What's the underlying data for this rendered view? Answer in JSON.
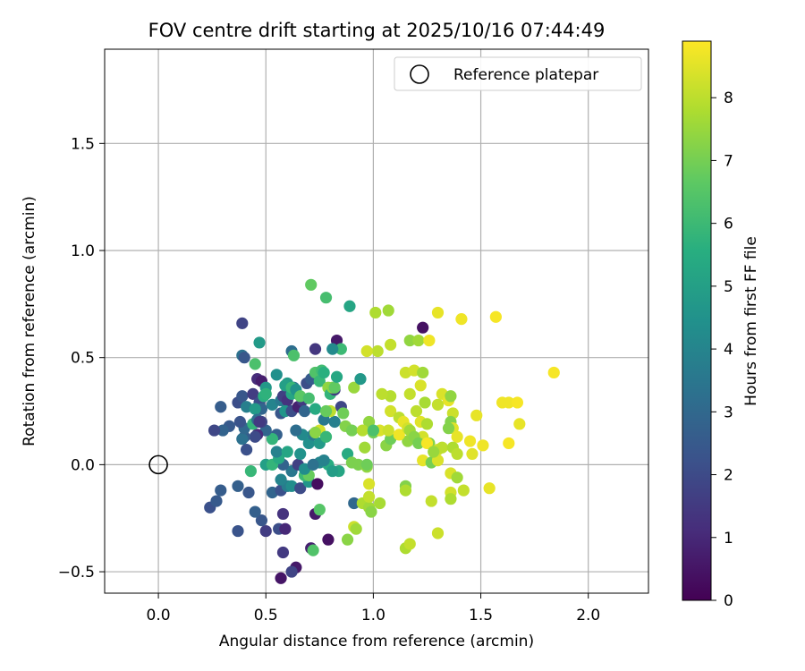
{
  "chart_data": {
    "type": "scatter",
    "title": "FOV centre drift starting at 2025/10/16 07:44:49",
    "xlabel": "Angular distance from reference (arcmin)",
    "ylabel": "Rotation from reference (arcmin)",
    "xlim": [
      -0.25,
      2.28
    ],
    "ylim": [
      -0.6,
      1.94
    ],
    "xticks": [
      0.0,
      0.5,
      1.0,
      1.5,
      2.0
    ],
    "xtick_labels": [
      "0.0",
      "0.5",
      "1.0",
      "1.5",
      "2.0"
    ],
    "yticks": [
      -0.5,
      0.0,
      0.5,
      1.0,
      1.5
    ],
    "ytick_labels": [
      "−0.5",
      "0.0",
      "0.5",
      "1.0",
      "1.5"
    ],
    "grid": true,
    "legend": {
      "placement": "top-right",
      "label": "Reference platepar"
    },
    "reference_point": {
      "x": 0.0,
      "y": 0.0
    },
    "colorbar": {
      "label": "Hours from first FF file",
      "min": 0,
      "max": 8.9,
      "ticks": [
        0,
        1,
        2,
        3,
        4,
        5,
        6,
        7,
        8
      ],
      "tick_labels": [
        "0",
        "1",
        "2",
        "3",
        "4",
        "5",
        "6",
        "7",
        "8"
      ],
      "colormap": "viridis"
    },
    "points": [
      {
        "x": 0.57,
        "y": -0.53,
        "t": 0.5
      },
      {
        "x": 0.64,
        "y": -0.48,
        "t": 0.6
      },
      {
        "x": 0.62,
        "y": -0.5,
        "t": 1.8
      },
      {
        "x": 0.58,
        "y": -0.41,
        "t": 1.5
      },
      {
        "x": 0.71,
        "y": -0.39,
        "t": 0.8
      },
      {
        "x": 0.79,
        "y": -0.35,
        "t": 0.4
      },
      {
        "x": 0.56,
        "y": -0.3,
        "t": 2.1
      },
      {
        "x": 0.59,
        "y": -0.3,
        "t": 1.0
      },
      {
        "x": 0.5,
        "y": -0.31,
        "t": 1.6
      },
      {
        "x": 0.48,
        "y": -0.26,
        "t": 2.4
      },
      {
        "x": 0.45,
        "y": -0.22,
        "t": 2.7
      },
      {
        "x": 0.58,
        "y": -0.23,
        "t": 1.3
      },
      {
        "x": 0.37,
        "y": -0.31,
        "t": 2.3
      },
      {
        "x": 0.24,
        "y": -0.2,
        "t": 2.2
      },
      {
        "x": 0.27,
        "y": -0.17,
        "t": 2.5
      },
      {
        "x": 0.29,
        "y": -0.12,
        "t": 2.6
      },
      {
        "x": 0.37,
        "y": -0.1,
        "t": 2.7
      },
      {
        "x": 0.42,
        "y": -0.13,
        "t": 2.4
      },
      {
        "x": 0.53,
        "y": -0.13,
        "t": 2.9
      },
      {
        "x": 0.57,
        "y": -0.12,
        "t": 2.2
      },
      {
        "x": 0.6,
        "y": -0.1,
        "t": 3.7
      },
      {
        "x": 0.62,
        "y": -0.1,
        "t": 4.3
      },
      {
        "x": 0.66,
        "y": -0.11,
        "t": 2.0
      },
      {
        "x": 0.7,
        "y": -0.08,
        "t": 4.6
      },
      {
        "x": 0.73,
        "y": -0.23,
        "t": 0.6
      },
      {
        "x": 0.75,
        "y": -0.21,
        "t": 6.5
      },
      {
        "x": 0.74,
        "y": -0.09,
        "t": 0.3
      },
      {
        "x": 0.72,
        "y": -0.4,
        "t": 6.4
      },
      {
        "x": 0.57,
        "y": -0.07,
        "t": 4.0
      },
      {
        "x": 0.62,
        "y": -0.03,
        "t": 3.5
      },
      {
        "x": 0.58,
        "y": 0.0,
        "t": 2.8
      },
      {
        "x": 0.65,
        "y": 0.0,
        "t": 1.7
      },
      {
        "x": 0.68,
        "y": -0.05,
        "t": 6.0
      },
      {
        "x": 0.7,
        "y": -0.05,
        "t": 6.8
      },
      {
        "x": 0.75,
        "y": 0.01,
        "t": 4.1
      },
      {
        "x": 0.79,
        "y": 0.0,
        "t": 5.5
      },
      {
        "x": 0.84,
        "y": -0.03,
        "t": 5.2
      },
      {
        "x": 0.5,
        "y": 0.0,
        "t": 5.0
      },
      {
        "x": 0.53,
        "y": 0.0,
        "t": 5.8
      },
      {
        "x": 0.56,
        "y": 0.03,
        "t": 5.4
      },
      {
        "x": 0.43,
        "y": -0.03,
        "t": 5.9
      },
      {
        "x": 0.55,
        "y": 0.06,
        "t": 3.9
      },
      {
        "x": 0.6,
        "y": 0.06,
        "t": 5.2
      },
      {
        "x": 0.66,
        "y": 0.05,
        "t": 4.5
      },
      {
        "x": 0.7,
        "y": 0.1,
        "t": 4.4
      },
      {
        "x": 0.72,
        "y": 0.14,
        "t": 3.6
      },
      {
        "x": 0.75,
        "y": 0.1,
        "t": 4.8
      },
      {
        "x": 0.67,
        "y": 0.14,
        "t": 4.2
      },
      {
        "x": 0.64,
        "y": 0.16,
        "t": 3.2
      },
      {
        "x": 0.55,
        "y": 0.14,
        "t": 2.7
      },
      {
        "x": 0.53,
        "y": 0.12,
        "t": 5.8
      },
      {
        "x": 0.5,
        "y": 0.16,
        "t": 2.9
      },
      {
        "x": 0.46,
        "y": 0.14,
        "t": 1.1
      },
      {
        "x": 0.45,
        "y": 0.13,
        "t": 2.0
      },
      {
        "x": 0.4,
        "y": 0.13,
        "t": 2.6
      },
      {
        "x": 0.39,
        "y": 0.12,
        "t": 3.3
      },
      {
        "x": 0.41,
        "y": 0.07,
        "t": 2.2
      },
      {
        "x": 0.4,
        "y": 0.17,
        "t": 3.0
      },
      {
        "x": 0.44,
        "y": 0.19,
        "t": 5.8
      },
      {
        "x": 0.48,
        "y": 0.2,
        "t": 1.9
      },
      {
        "x": 0.38,
        "y": 0.2,
        "t": 2.3
      },
      {
        "x": 0.33,
        "y": 0.18,
        "t": 2.5
      },
      {
        "x": 0.3,
        "y": 0.16,
        "t": 2.8
      },
      {
        "x": 0.26,
        "y": 0.16,
        "t": 1.9
      },
      {
        "x": 0.29,
        "y": 0.27,
        "t": 2.6
      },
      {
        "x": 0.37,
        "y": 0.29,
        "t": 2.1
      },
      {
        "x": 0.39,
        "y": 0.32,
        "t": 2.4
      },
      {
        "x": 0.41,
        "y": 0.27,
        "t": 3.8
      },
      {
        "x": 0.44,
        "y": 0.33,
        "t": 1.6
      },
      {
        "x": 0.47,
        "y": 0.29,
        "t": 2.1
      },
      {
        "x": 0.49,
        "y": 0.32,
        "t": 5.6
      },
      {
        "x": 0.48,
        "y": 0.26,
        "t": 2.9
      },
      {
        "x": 0.53,
        "y": 0.28,
        "t": 4.0
      },
      {
        "x": 0.57,
        "y": 0.3,
        "t": 3.6
      },
      {
        "x": 0.58,
        "y": 0.32,
        "t": 1.7
      },
      {
        "x": 0.6,
        "y": 0.3,
        "t": 1.3
      },
      {
        "x": 0.62,
        "y": 0.33,
        "t": 5.2
      },
      {
        "x": 0.63,
        "y": 0.36,
        "t": 3.4
      },
      {
        "x": 0.6,
        "y": 0.38,
        "t": 4.8
      },
      {
        "x": 0.57,
        "y": 0.24,
        "t": 2.4
      },
      {
        "x": 0.59,
        "y": 0.25,
        "t": 4.6
      },
      {
        "x": 0.62,
        "y": 0.25,
        "t": 2.1
      },
      {
        "x": 0.65,
        "y": 0.27,
        "t": 0.8
      },
      {
        "x": 0.67,
        "y": 0.3,
        "t": 1.5
      },
      {
        "x": 0.68,
        "y": 0.25,
        "t": 2.9
      },
      {
        "x": 0.69,
        "y": 0.38,
        "t": 2.1
      },
      {
        "x": 0.71,
        "y": 0.4,
        "t": 2.5
      },
      {
        "x": 0.73,
        "y": 0.43,
        "t": 6.4
      },
      {
        "x": 0.76,
        "y": 0.44,
        "t": 6.1
      },
      {
        "x": 0.75,
        "y": 0.39,
        "t": 5.9
      },
      {
        "x": 0.79,
        "y": 0.36,
        "t": 7.4
      },
      {
        "x": 0.8,
        "y": 0.33,
        "t": 5.8
      },
      {
        "x": 0.82,
        "y": 0.35,
        "t": 1.6
      },
      {
        "x": 0.85,
        "y": 0.27,
        "t": 1.9
      },
      {
        "x": 0.82,
        "y": 0.2,
        "t": 3.8
      },
      {
        "x": 0.86,
        "y": 0.24,
        "t": 6.9
      },
      {
        "x": 0.8,
        "y": 0.25,
        "t": 8.0
      },
      {
        "x": 0.77,
        "y": 0.21,
        "t": 3.6
      },
      {
        "x": 0.75,
        "y": 0.16,
        "t": 8.3
      },
      {
        "x": 0.73,
        "y": 0.15,
        "t": 7.3
      },
      {
        "x": 0.78,
        "y": 0.13,
        "t": 5.9
      },
      {
        "x": 0.87,
        "y": 0.18,
        "t": 7.2
      },
      {
        "x": 0.9,
        "y": 0.16,
        "t": 7.0
      },
      {
        "x": 0.91,
        "y": 0.36,
        "t": 7.5
      },
      {
        "x": 0.94,
        "y": 0.4,
        "t": 4.7
      },
      {
        "x": 0.88,
        "y": 0.05,
        "t": 5.4
      },
      {
        "x": 0.93,
        "y": 0.0,
        "t": 7.1
      },
      {
        "x": 0.97,
        "y": -0.01,
        "t": 7.4
      },
      {
        "x": 0.91,
        "y": -0.18,
        "t": 3.0
      },
      {
        "x": 0.95,
        "y": -0.18,
        "t": 7.8
      },
      {
        "x": 0.98,
        "y": -0.2,
        "t": 7.6
      },
      {
        "x": 0.98,
        "y": -0.15,
        "t": 8.1
      },
      {
        "x": 0.98,
        "y": -0.09,
        "t": 8.4
      },
      {
        "x": 1.03,
        "y": -0.18,
        "t": 7.7
      },
      {
        "x": 0.99,
        "y": -0.22,
        "t": 7.3
      },
      {
        "x": 0.91,
        "y": -0.29,
        "t": 8.2
      },
      {
        "x": 0.92,
        "y": -0.3,
        "t": 7.6
      },
      {
        "x": 0.88,
        "y": -0.35,
        "t": 7.3
      },
      {
        "x": 0.96,
        "y": 0.08,
        "t": 7.6
      },
      {
        "x": 0.98,
        "y": 0.2,
        "t": 7.4
      },
      {
        "x": 1.0,
        "y": 0.15,
        "t": 7.0
      },
      {
        "x": 1.03,
        "y": 0.16,
        "t": 8.4
      },
      {
        "x": 1.06,
        "y": 0.09,
        "t": 7.3
      },
      {
        "x": 1.08,
        "y": 0.12,
        "t": 6.9
      },
      {
        "x": 1.07,
        "y": 0.16,
        "t": 8.2
      },
      {
        "x": 1.08,
        "y": 0.25,
        "t": 8.3
      },
      {
        "x": 1.08,
        "y": 0.32,
        "t": 7.9
      },
      {
        "x": 1.04,
        "y": 0.33,
        "t": 8.0
      },
      {
        "x": 1.12,
        "y": 0.22,
        "t": 8.0
      },
      {
        "x": 1.14,
        "y": 0.2,
        "t": 8.6
      },
      {
        "x": 1.16,
        "y": 0.11,
        "t": 7.4
      },
      {
        "x": 1.15,
        "y": -0.1,
        "t": 7.2
      },
      {
        "x": 1.15,
        "y": -0.12,
        "t": 7.8
      },
      {
        "x": 1.15,
        "y": -0.39,
        "t": 7.8
      },
      {
        "x": 1.17,
        "y": -0.37,
        "t": 8.1
      },
      {
        "x": 1.17,
        "y": 0.33,
        "t": 8.1
      },
      {
        "x": 1.15,
        "y": 0.43,
        "t": 8.2
      },
      {
        "x": 1.19,
        "y": 0.44,
        "t": 8.3
      },
      {
        "x": 1.17,
        "y": 0.58,
        "t": 7.4
      },
      {
        "x": 1.21,
        "y": 0.58,
        "t": 7.6
      },
      {
        "x": 1.23,
        "y": 0.64,
        "t": 0.4
      },
      {
        "x": 1.26,
        "y": 0.58,
        "t": 8.7
      },
      {
        "x": 1.23,
        "y": 0.43,
        "t": 7.6
      },
      {
        "x": 1.22,
        "y": 0.37,
        "t": 8.4
      },
      {
        "x": 1.24,
        "y": 0.29,
        "t": 7.7
      },
      {
        "x": 1.2,
        "y": 0.25,
        "t": 8.0
      },
      {
        "x": 1.22,
        "y": 0.2,
        "t": 8.5
      },
      {
        "x": 1.25,
        "y": 0.19,
        "t": 7.8
      },
      {
        "x": 1.23,
        "y": 0.13,
        "t": 8.3
      },
      {
        "x": 1.26,
        "y": 0.1,
        "t": 7.2
      },
      {
        "x": 1.3,
        "y": 0.07,
        "t": 8.2
      },
      {
        "x": 1.32,
        "y": 0.08,
        "t": 8.0
      },
      {
        "x": 1.23,
        "y": 0.02,
        "t": 8.6
      },
      {
        "x": 1.27,
        "y": 0.01,
        "t": 7.0
      },
      {
        "x": 1.3,
        "y": 0.02,
        "t": 8.4
      },
      {
        "x": 1.27,
        "y": -0.17,
        "t": 8.1
      },
      {
        "x": 1.3,
        "y": -0.32,
        "t": 8.2
      },
      {
        "x": 1.32,
        "y": 0.33,
        "t": 8.4
      },
      {
        "x": 1.35,
        "y": 0.3,
        "t": 8.6
      },
      {
        "x": 1.36,
        "y": 0.32,
        "t": 7.4
      },
      {
        "x": 1.37,
        "y": 0.24,
        "t": 8.2
      },
      {
        "x": 1.36,
        "y": 0.2,
        "t": 7.2
      },
      {
        "x": 1.37,
        "y": 0.17,
        "t": 8.5
      },
      {
        "x": 1.39,
        "y": 0.13,
        "t": 8.6
      },
      {
        "x": 1.36,
        "y": -0.04,
        "t": 8.4
      },
      {
        "x": 1.36,
        "y": -0.13,
        "t": 8.3
      },
      {
        "x": 1.36,
        "y": -0.16,
        "t": 7.8
      },
      {
        "x": 1.39,
        "y": -0.06,
        "t": 7.6
      },
      {
        "x": 1.42,
        "y": -0.12,
        "t": 8.1
      },
      {
        "x": 1.3,
        "y": 0.28,
        "t": 8.1
      },
      {
        "x": 1.3,
        "y": 0.71,
        "t": 8.6
      },
      {
        "x": 1.41,
        "y": 0.68,
        "t": 8.7
      },
      {
        "x": 1.45,
        "y": 0.11,
        "t": 8.7
      },
      {
        "x": 1.46,
        "y": 0.05,
        "t": 8.5
      },
      {
        "x": 1.48,
        "y": 0.23,
        "t": 8.6
      },
      {
        "x": 1.51,
        "y": 0.09,
        "t": 8.7
      },
      {
        "x": 1.54,
        "y": -0.11,
        "t": 8.6
      },
      {
        "x": 1.57,
        "y": 0.69,
        "t": 8.8
      },
      {
        "x": 1.6,
        "y": 0.29,
        "t": 8.7
      },
      {
        "x": 1.63,
        "y": 0.29,
        "t": 8.7
      },
      {
        "x": 1.63,
        "y": 0.1,
        "t": 8.8
      },
      {
        "x": 1.67,
        "y": 0.29,
        "t": 8.8
      },
      {
        "x": 1.68,
        "y": 0.19,
        "t": 8.6
      },
      {
        "x": 1.84,
        "y": 0.43,
        "t": 8.8
      },
      {
        "x": 1.01,
        "y": 0.71,
        "t": 7.8
      },
      {
        "x": 1.07,
        "y": 0.72,
        "t": 7.6
      },
      {
        "x": 1.08,
        "y": 0.56,
        "t": 8.1
      },
      {
        "x": 1.02,
        "y": 0.53,
        "t": 8.0
      },
      {
        "x": 0.97,
        "y": 0.53,
        "t": 8.3
      },
      {
        "x": 0.71,
        "y": 0.84,
        "t": 6.7
      },
      {
        "x": 0.78,
        "y": 0.78,
        "t": 6.2
      },
      {
        "x": 0.89,
        "y": 0.74,
        "t": 5.2
      },
      {
        "x": 0.83,
        "y": 0.58,
        "t": 0.6
      },
      {
        "x": 0.85,
        "y": 0.54,
        "t": 6.0
      },
      {
        "x": 0.81,
        "y": 0.54,
        "t": 4.2
      },
      {
        "x": 0.73,
        "y": 0.54,
        "t": 1.4
      },
      {
        "x": 0.62,
        "y": 0.53,
        "t": 3.2
      },
      {
        "x": 0.63,
        "y": 0.51,
        "t": 6.3
      },
      {
        "x": 0.39,
        "y": 0.66,
        "t": 1.8
      },
      {
        "x": 0.47,
        "y": 0.57,
        "t": 4.8
      },
      {
        "x": 0.39,
        "y": 0.51,
        "t": 3.3
      },
      {
        "x": 0.4,
        "y": 0.5,
        "t": 2.4
      },
      {
        "x": 0.45,
        "y": 0.47,
        "t": 6.3
      },
      {
        "x": 0.55,
        "y": 0.42,
        "t": 4.4
      },
      {
        "x": 0.46,
        "y": 0.4,
        "t": 1.1
      },
      {
        "x": 0.48,
        "y": 0.39,
        "t": 0.7
      },
      {
        "x": 0.5,
        "y": 0.36,
        "t": 4.7
      },
      {
        "x": 0.45,
        "y": 0.26,
        "t": 4.8
      },
      {
        "x": 0.46,
        "y": 0.21,
        "t": 3.2
      },
      {
        "x": 0.47,
        "y": 0.2,
        "t": 1.5
      },
      {
        "x": 0.5,
        "y": 0.33,
        "t": 5.7
      },
      {
        "x": 0.59,
        "y": 0.37,
        "t": 5.0
      },
      {
        "x": 0.62,
        "y": 0.36,
        "t": 5.9
      },
      {
        "x": 0.64,
        "y": 0.35,
        "t": 4.5
      },
      {
        "x": 0.66,
        "y": 0.32,
        "t": 6.6
      },
      {
        "x": 0.7,
        "y": 0.31,
        "t": 6.2
      },
      {
        "x": 0.73,
        "y": 0.26,
        "t": 5.4
      },
      {
        "x": 0.78,
        "y": 0.25,
        "t": 6.8
      },
      {
        "x": 0.81,
        "y": 0.36,
        "t": 7.3
      },
      {
        "x": 0.82,
        "y": 0.36,
        "t": 6.7
      },
      {
        "x": 0.83,
        "y": 0.41,
        "t": 5.3
      },
      {
        "x": 0.77,
        "y": 0.43,
        "t": 5.6
      },
      {
        "x": 0.95,
        "y": 0.16,
        "t": 7.9
      },
      {
        "x": 1.0,
        "y": 0.16,
        "t": 6.3
      },
      {
        "x": 1.12,
        "y": 0.14,
        "t": 8.7
      },
      {
        "x": 1.16,
        "y": 0.17,
        "t": 8.3
      },
      {
        "x": 1.17,
        "y": 0.16,
        "t": 7.6
      },
      {
        "x": 1.19,
        "y": 0.13,
        "t": 7.3
      },
      {
        "x": 1.21,
        "y": 0.1,
        "t": 7.0
      },
      {
        "x": 1.25,
        "y": 0.1,
        "t": 8.8
      },
      {
        "x": 1.28,
        "y": 0.06,
        "t": 7.5
      },
      {
        "x": 1.35,
        "y": 0.17,
        "t": 7.2
      },
      {
        "x": 1.37,
        "y": 0.08,
        "t": 7.8
      },
      {
        "x": 1.39,
        "y": 0.05,
        "t": 8.0
      },
      {
        "x": 0.68,
        "y": -0.02,
        "t": 4.3
      },
      {
        "x": 0.72,
        "y": 0.0,
        "t": 3.3
      },
      {
        "x": 0.81,
        "y": -0.03,
        "t": 4.9
      },
      {
        "x": 0.77,
        "y": 0.02,
        "t": 3.9
      },
      {
        "x": 0.9,
        "y": 0.01,
        "t": 7.1
      },
      {
        "x": 0.97,
        "y": 0.0,
        "t": 6.9
      }
    ]
  }
}
